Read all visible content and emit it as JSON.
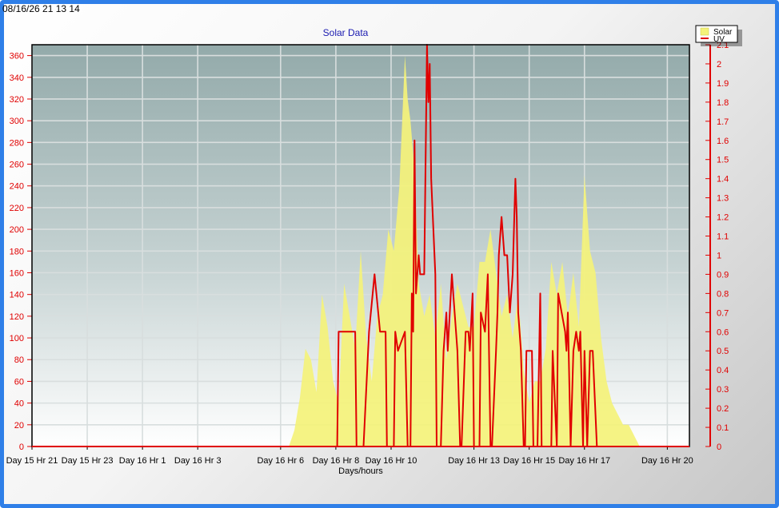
{
  "timestamp": "08/16/26 21 13 14",
  "colors": {
    "frame": "#2f7fe8",
    "title": "#1a1ab0",
    "axis": "#e00000",
    "solar": "#f4f27a",
    "uv": "#e00000"
  },
  "chart_data": {
    "type": "area",
    "title": "Solar Data",
    "xlabel": "Days/hours",
    "x_ticks": [
      "Day 15 Hr 21",
      "Day 15 Hr 23",
      "Day 16 Hr 1",
      "Day 16 Hr 3",
      "Day 16 Hr 6",
      "Day 16 Hr 8",
      "Day 16 Hr 10",
      "Day 16 Hr 13",
      "Day 16 Hr 15",
      "Day 16 Hr 17",
      "Day 16 Hr 20"
    ],
    "x_tick_hours": [
      0,
      2,
      4,
      6,
      9,
      11,
      13,
      16,
      18,
      20,
      23
    ],
    "xlim": [
      0,
      23.8
    ],
    "y_left": {
      "ylim": [
        0,
        370
      ],
      "ticks": [
        "0",
        "20",
        "40",
        "60",
        "80",
        "100",
        "120",
        "140",
        "160",
        "180",
        "200",
        "220",
        "240",
        "260",
        "280",
        "300",
        "320",
        "340",
        "360"
      ]
    },
    "y_right": {
      "ylim": [
        0,
        2.1
      ],
      "ticks": [
        "0",
        "0.1",
        "0.2",
        "0.3",
        "0.4",
        "0.5",
        "0.6",
        "0.7",
        "0.8",
        "0.9",
        "1",
        "1.1",
        "1.2",
        "1.3",
        "1.4",
        "1.5",
        "1.6",
        "1.7",
        "1.8",
        "1.9",
        "2",
        "2.1"
      ]
    },
    "legend": {
      "position": "top-right",
      "entries": [
        "Solar",
        "UV"
      ]
    },
    "grid": true,
    "series": [
      {
        "name": "Solar",
        "axis": "left",
        "x": [
          0,
          9.3,
          9.5,
          9.7,
          9.9,
          10.1,
          10.3,
          10.5,
          10.7,
          10.9,
          11.1,
          11.3,
          11.5,
          11.7,
          11.9,
          12.1,
          12.3,
          12.5,
          12.7,
          12.9,
          13.1,
          13.3,
          13.5,
          13.6,
          13.7,
          13.8,
          13.9,
          14.0,
          14.2,
          14.4,
          14.6,
          14.8,
          15.0,
          15.2,
          15.4,
          15.6,
          15.8,
          16.0,
          16.2,
          16.4,
          16.6,
          16.8,
          17.0,
          17.2,
          17.4,
          17.6,
          17.8,
          18.0,
          18.2,
          18.4,
          18.6,
          18.8,
          19.0,
          19.2,
          19.4,
          19.6,
          19.8,
          20.0,
          20.2,
          20.4,
          20.6,
          20.8,
          21.0,
          21.2,
          21.4,
          21.6,
          21.8,
          22.0,
          23.8
        ],
        "values": [
          0,
          0,
          15,
          45,
          90,
          80,
          50,
          140,
          110,
          60,
          40,
          150,
          120,
          90,
          180,
          100,
          60,
          120,
          140,
          200,
          180,
          240,
          360,
          320,
          300,
          270,
          220,
          150,
          120,
          140,
          100,
          150,
          80,
          120,
          150,
          130,
          110,
          110,
          170,
          170,
          200,
          160,
          120,
          140,
          100,
          140,
          70,
          40,
          60,
          60,
          90,
          170,
          140,
          170,
          120,
          160,
          110,
          250,
          180,
          160,
          100,
          60,
          40,
          30,
          20,
          20,
          10,
          0,
          0
        ]
      },
      {
        "name": "UV",
        "axis": "right",
        "x": [
          0,
          11.05,
          11.1,
          11.7,
          11.75,
          12.0,
          12.2,
          12.4,
          12.6,
          12.8,
          12.85,
          13.1,
          13.15,
          13.25,
          13.5,
          13.6,
          13.7,
          13.75,
          13.8,
          13.85,
          13.9,
          14.0,
          14.05,
          14.2,
          14.3,
          14.35,
          14.4,
          14.45,
          14.6,
          14.65,
          14.8,
          14.9,
          15.0,
          15.05,
          15.2,
          15.25,
          15.4,
          15.5,
          15.55,
          15.7,
          15.8,
          15.85,
          15.95,
          16.0,
          16.2,
          16.25,
          16.4,
          16.5,
          16.6,
          16.65,
          16.8,
          16.85,
          16.9,
          17.0,
          17.1,
          17.2,
          17.3,
          17.4,
          17.5,
          17.55,
          17.6,
          17.7,
          17.8,
          17.85,
          17.9,
          18.1,
          18.15,
          18.3,
          18.4,
          18.45,
          18.6,
          18.8,
          18.85,
          19.0,
          19.05,
          19.3,
          19.35,
          19.4,
          19.5,
          19.6,
          19.7,
          19.8,
          19.85,
          19.95,
          20.0,
          20.1,
          20.2,
          20.3,
          20.45,
          20.5,
          20.8,
          20.85,
          23.8
        ],
        "values": [
          0,
          0,
          0.6,
          0.6,
          0,
          0,
          0.6,
          0.9,
          0.6,
          0.6,
          0,
          0,
          0.6,
          0.5,
          0.6,
          0,
          0,
          0.8,
          0.6,
          1.6,
          0.8,
          1.0,
          0.9,
          0.9,
          2.1,
          1.8,
          2.0,
          1.4,
          0.9,
          0,
          0,
          0.5,
          0.7,
          0.5,
          0.9,
          0.8,
          0.5,
          0,
          0,
          0.6,
          0.6,
          0.5,
          0.8,
          0,
          0,
          0.7,
          0.6,
          0.9,
          0,
          0,
          0.5,
          0.7,
          1.0,
          1.2,
          1.0,
          1.0,
          0.7,
          0.9,
          1.4,
          1.2,
          0.7,
          0.5,
          0,
          0,
          0.5,
          0.5,
          0,
          0,
          0.8,
          0,
          0,
          0,
          0.5,
          0,
          0.8,
          0.6,
          0.5,
          0.7,
          0,
          0.5,
          0.6,
          0.5,
          0.6,
          0,
          0.5,
          0,
          0.5,
          0.5,
          0,
          0,
          0,
          0,
          0
        ]
      }
    ]
  }
}
